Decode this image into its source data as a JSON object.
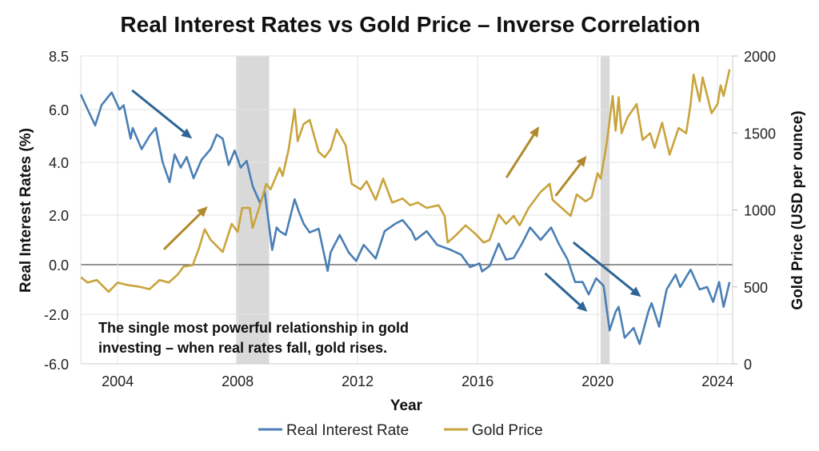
{
  "chart_data": {
    "type": "line",
    "title": "Real Interest Rates vs Gold Price – Inverse Correlation",
    "xlabel": "Year",
    "ylabel_left": "Real Interest Rates (%)",
    "ylabel_right": "Gold Price (USD per ounce)",
    "x_ticks": [
      "2004",
      "2008",
      "2012",
      "2016",
      "2020",
      "2024"
    ],
    "x_range": [
      2002.77,
      2024.5
    ],
    "y_left_ticks": [
      "8.5",
      "6.0",
      "4.0",
      "2.0",
      "0.0",
      "-2.0",
      "-6.0"
    ],
    "y_left_tick_values": [
      8.5,
      6,
      4,
      2,
      0,
      -2,
      -6
    ],
    "y_right_ticks": [
      "2000",
      "1500",
      "1000",
      "500",
      "0"
    ],
    "y_right_range": [
      0,
      2000
    ],
    "grid": true,
    "legend_position": "bottom",
    "shaded_periods": [
      [
        2007.95,
        2009.05
      ],
      [
        2020.1,
        2020.4
      ]
    ],
    "annotation": [
      "The single most powerful relationship in gold",
      "investing – when real rates fall, gold rises."
    ],
    "colors": {
      "rate": "#4a7fb5",
      "gold": "#c9a43c",
      "rate_arrow": "#2f6596",
      "gold_arrow": "#b08a2c",
      "shade": "#d9d9d9"
    },
    "arrows": [
      {
        "series": "rate",
        "from": [
          2004.48,
          6.9
        ],
        "to": [
          2006.48,
          4.9
        ]
      },
      {
        "series": "rate",
        "from": [
          2019.19,
          0.9
        ],
        "to": [
          2021.45,
          -1.3
        ]
      },
      {
        "series": "rate",
        "from": [
          2018.25,
          -0.35
        ],
        "to": [
          2019.66,
          -1.9
        ]
      },
      {
        "series": "gold",
        "from": [
          2005.54,
          743
        ],
        "to": [
          2007.0,
          1023
        ]
      },
      {
        "series": "gold",
        "from": [
          2016.96,
          1210
        ],
        "to": [
          2018.05,
          1543
        ]
      },
      {
        "series": "gold",
        "from": [
          2018.6,
          1091
        ],
        "to": [
          2019.63,
          1351
        ]
      }
    ],
    "series": [
      {
        "name": "Real Interest Rate",
        "axis": "left",
        "x": [
          2002.77,
          2003.0,
          2003.25,
          2003.46,
          2003.8,
          2004.06,
          2004.2,
          2004.43,
          2004.5,
          2004.8,
          2005.06,
          2005.27,
          2005.5,
          2005.73,
          2005.9,
          2006.1,
          2006.3,
          2006.53,
          2006.8,
          2007.1,
          2007.3,
          2007.5,
          2007.7,
          2007.9,
          2008.1,
          2008.3,
          2008.5,
          2008.75,
          2008.9,
          2009.15,
          2009.3,
          2009.4,
          2009.6,
          2009.9,
          2010.05,
          2010.2,
          2010.4,
          2010.7,
          2011.0,
          2011.1,
          2011.4,
          2011.7,
          2011.95,
          2012.2,
          2012.6,
          2012.9,
          2013.25,
          2013.5,
          2013.8,
          2013.93,
          2014.3,
          2014.65,
          2015.1,
          2015.45,
          2015.75,
          2016.06,
          2016.15,
          2016.4,
          2016.7,
          2016.95,
          2017.2,
          2017.5,
          2017.75,
          2018.1,
          2018.45,
          2018.7,
          2019.0,
          2019.25,
          2019.5,
          2019.7,
          2019.95,
          2020.2,
          2020.4,
          2020.6,
          2020.7,
          2020.9,
          2021.2,
          2021.4,
          2021.7,
          2021.8,
          2022.05,
          2022.3,
          2022.6,
          2022.75,
          2023.1,
          2023.4,
          2023.65,
          2023.85,
          2024.05,
          2024.2,
          2024.4
        ],
        "y": [
          6.7,
          6.0,
          5.4,
          6.2,
          6.8,
          6.0,
          6.2,
          4.9,
          5.3,
          4.5,
          5.0,
          5.3,
          4.0,
          3.25,
          4.3,
          3.8,
          4.2,
          3.4,
          4.1,
          4.5,
          5.05,
          4.9,
          3.9,
          4.45,
          3.8,
          4.05,
          3.1,
          2.45,
          2.9,
          0.6,
          1.5,
          1.35,
          1.2,
          2.6,
          2.1,
          1.65,
          1.3,
          1.45,
          -0.25,
          0.5,
          1.2,
          0.5,
          0.15,
          0.8,
          0.25,
          1.35,
          1.65,
          1.8,
          1.35,
          1.0,
          1.35,
          0.8,
          0.6,
          0.4,
          -0.1,
          0.05,
          -0.27,
          -0.05,
          0.85,
          0.2,
          0.27,
          0.9,
          1.5,
          1.0,
          1.5,
          0.85,
          0.2,
          -0.7,
          -0.7,
          -1.2,
          -0.55,
          -0.85,
          -3.3,
          -1.9,
          -1.7,
          -3.9,
          -3.1,
          -4.4,
          -1.85,
          -1.55,
          -3.0,
          -1.0,
          -0.4,
          -0.9,
          -0.2,
          -1.0,
          -0.9,
          -1.5,
          -0.7,
          -1.7,
          -0.7
        ]
      },
      {
        "name": "Gold Price",
        "axis": "right",
        "x": [
          2002.77,
          2003.0,
          2003.3,
          2003.7,
          2004.0,
          2004.35,
          2004.7,
          2005.06,
          2005.4,
          2005.7,
          2006.0,
          2006.2,
          2006.5,
          2006.7,
          2006.9,
          2007.1,
          2007.5,
          2007.8,
          2008.0,
          2008.15,
          2008.4,
          2008.5,
          2008.8,
          2008.95,
          2009.1,
          2009.4,
          2009.5,
          2009.7,
          2009.9,
          2010.0,
          2010.2,
          2010.4,
          2010.7,
          2010.9,
          2011.1,
          2011.3,
          2011.6,
          2011.8,
          2012.1,
          2012.3,
          2012.6,
          2012.85,
          2013.15,
          2013.5,
          2013.75,
          2014.0,
          2014.3,
          2014.7,
          2014.9,
          2015.0,
          2015.3,
          2015.6,
          2015.95,
          2016.2,
          2016.4,
          2016.7,
          2016.95,
          2017.2,
          2017.4,
          2017.7,
          2018.1,
          2018.4,
          2018.5,
          2018.8,
          2019.1,
          2019.3,
          2019.6,
          2019.8,
          2020.0,
          2020.1,
          2020.3,
          2020.5,
          2020.6,
          2020.7,
          2020.8,
          2021.0,
          2021.3,
          2021.5,
          2021.75,
          2021.9,
          2022.15,
          2022.4,
          2022.7,
          2022.95,
          2023.1,
          2023.2,
          2023.4,
          2023.5,
          2023.8,
          2024.0,
          2024.1,
          2024.2,
          2024.4
        ],
        "y": [
          563,
          528,
          545,
          468,
          528,
          511,
          502,
          485,
          545,
          528,
          580,
          632,
          641,
          745,
          874,
          805,
          727,
          909,
          857,
          1013,
          1013,
          883,
          1065,
          1169,
          1134,
          1273,
          1221,
          1394,
          1654,
          1446,
          1558,
          1584,
          1377,
          1342,
          1394,
          1524,
          1420,
          1169,
          1134,
          1186,
          1065,
          1203,
          1048,
          1074,
          1030,
          1048,
          1013,
          1030,
          961,
          788,
          840,
          900,
          840,
          788,
          805,
          970,
          909,
          961,
          900,
          1013,
          1117,
          1169,
          1065,
          1013,
          961,
          1100,
          1056,
          1082,
          1238,
          1203,
          1429,
          1740,
          1515,
          1732,
          1498,
          1602,
          1688,
          1455,
          1498,
          1403,
          1567,
          1359,
          1532,
          1498,
          1688,
          1879,
          1706,
          1861,
          1628,
          1688,
          1809,
          1740,
          1913
        ]
      }
    ]
  }
}
